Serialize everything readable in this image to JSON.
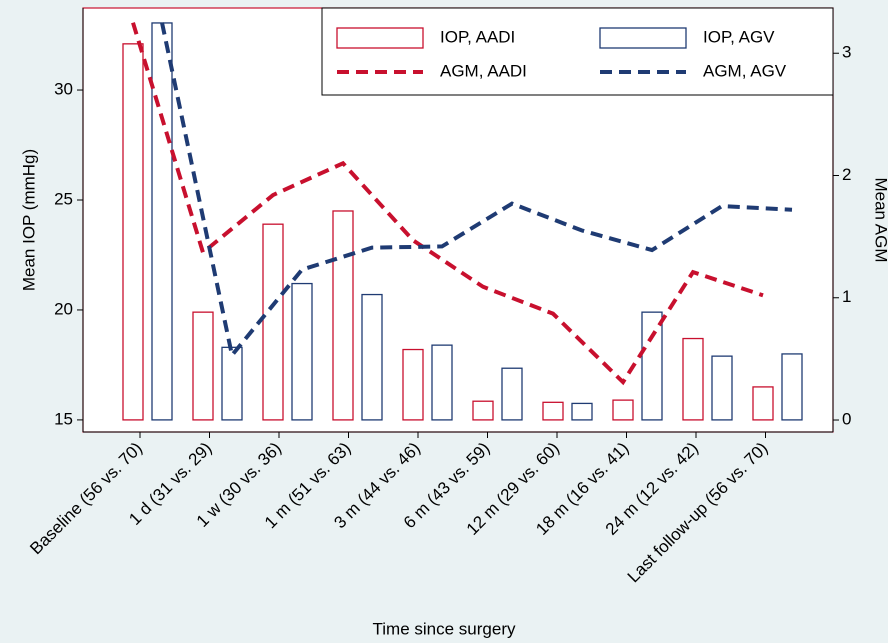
{
  "chart_data": {
    "type": "bar",
    "x_label": "Time since surgery",
    "y_label": "Mean IOP (mmHg)",
    "y2_label": "Mean AGM",
    "categories": [
      "Baseline (56 vs. 70)",
      "1 d (31 vs. 29)",
      "1 w (30 vs. 36)",
      "1 m (51 vs. 63)",
      "3 m (44 vs. 46)",
      "6 m (43 vs. 59)",
      "12 m (29 vs. 60)",
      "18 m (16 vs. 41)",
      "24 m (12 vs. 42)",
      "Last follow-up (56 vs. 70)"
    ],
    "series": [
      {
        "name": "IOP, AADI",
        "type": "bar",
        "color": "#c8102e",
        "values": [
          32.1,
          19.9,
          23.9,
          24.5,
          18.2,
          15.85,
          15.8,
          15.9,
          18.7,
          16.5
        ]
      },
      {
        "name": "IOP, AGV",
        "type": "bar",
        "color": "#1f3b73",
        "values": [
          33.05,
          18.3,
          21.2,
          20.7,
          18.4,
          17.35,
          15.75,
          19.9,
          17.9,
          18.0
        ]
      },
      {
        "name": "AGM, AADI",
        "type": "line",
        "axis": "y2",
        "color": "#c8102e",
        "values": [
          3.25,
          1.37,
          1.84,
          2.1,
          1.47,
          1.09,
          0.87,
          0.31,
          1.21,
          1.02
        ]
      },
      {
        "name": "AGM, AGV",
        "type": "line",
        "axis": "y2",
        "color": "#1f3b73",
        "values": [
          3.25,
          0.53,
          1.23,
          1.41,
          1.42,
          1.77,
          1.55,
          1.39,
          1.75,
          1.72
        ]
      }
    ],
    "ylim": [
      14.45,
      33.73
    ],
    "yticks": [
      15,
      20,
      25,
      30
    ],
    "y2lim": [
      -0.098,
      3.37
    ],
    "y2ticks": [
      0,
      1,
      2,
      3
    ],
    "legend": "top-right"
  }
}
